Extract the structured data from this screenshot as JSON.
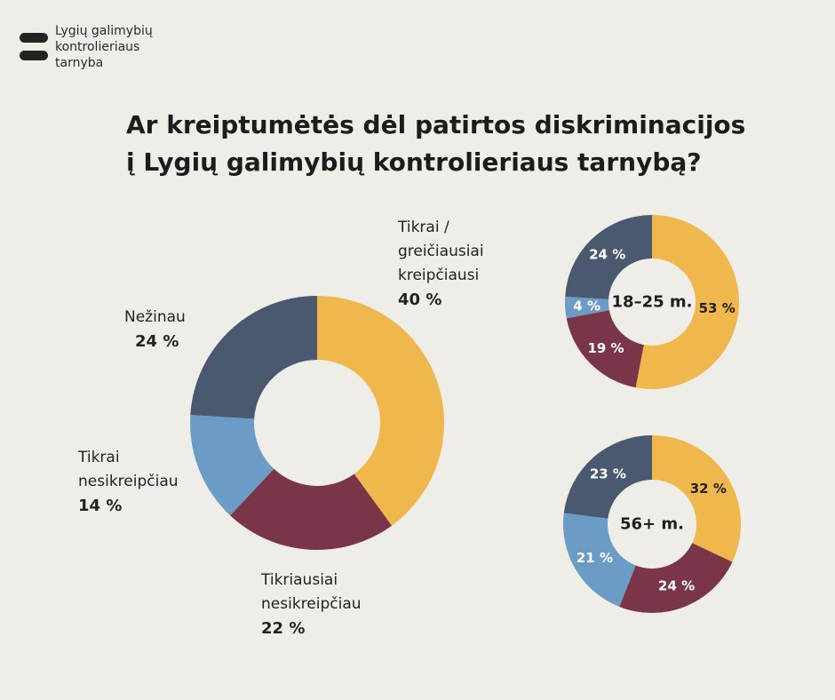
{
  "brand": {
    "lines": [
      "Lygių galimybių",
      "kontrolieriaus",
      "tarnyba"
    ],
    "icon": "logo-bars-icon",
    "color": "#232323"
  },
  "title": {
    "line1": "Ar kreiptumėtės dėl patirtos diskriminacijos",
    "line2": "į Lygių galimybių kontrolieriaus tarnybą?"
  },
  "colors": {
    "background": "#eeede8",
    "tikrai_kreipciausi": "#f0b84c",
    "tikriausiai_nesikreipciau": "#7a3648",
    "tikrai_nesikreipciau": "#6a9cc5",
    "nezinau": "#4a596f"
  },
  "main_labels": {
    "tikrai": {
      "line1": "Tikrai /",
      "line2": "greičiausiai",
      "line3": "kreipčiausi",
      "pct": "40 %"
    },
    "nezinau": {
      "line1": "Nežinau",
      "pct": "24 %"
    },
    "tikrai_nesikreipciau": {
      "line1": "Tikrai",
      "line2": "nesikreipčiau",
      "pct": "14 %"
    },
    "tikriausiai_nesikreipciau": {
      "line1": "Tikriausiai",
      "line2": "nesikreipčiau",
      "pct": "22 %"
    }
  },
  "chart_data": [
    {
      "type": "pie",
      "donut": true,
      "categories": [
        "Tikrai / greičiausiai kreipčiausi",
        "Tikriausiai nesikreipčiau",
        "Tikrai nesikreipčiau",
        "Nežinau"
      ],
      "values": [
        40,
        22,
        14,
        24
      ],
      "value_labels": [
        "40 %",
        "22 %",
        "14 %",
        "24 %"
      ],
      "colors": [
        "#f0b84c",
        "#7a3648",
        "#6a9cc5",
        "#4a596f"
      ]
    },
    {
      "type": "pie",
      "donut": true,
      "center_label": "18–25 m.",
      "categories": [
        "Tikrai / greičiausiai kreipčiausi",
        "Tikriausiai nesikreipčiau",
        "Tikrai nesikreipčiau",
        "Nežinau"
      ],
      "values": [
        53,
        19,
        4,
        24
      ],
      "value_labels": [
        "53 %",
        "19 %",
        "4 %",
        "24 %"
      ],
      "colors": [
        "#f0b84c",
        "#7a3648",
        "#6a9cc5",
        "#4a596f"
      ]
    },
    {
      "type": "pie",
      "donut": true,
      "center_label": "56+ m.",
      "categories": [
        "Tikrai / greičiausiai kreipčiausi",
        "Tikriausiai nesikreipčiau",
        "Tikrai nesikreipčiau",
        "Nežinau"
      ],
      "values": [
        32,
        24,
        21,
        23
      ],
      "value_labels": [
        "32 %",
        "24 %",
        "21 %",
        "23 %"
      ],
      "colors": [
        "#f0b84c",
        "#7a3648",
        "#6a9cc5",
        "#4a596f"
      ]
    }
  ]
}
